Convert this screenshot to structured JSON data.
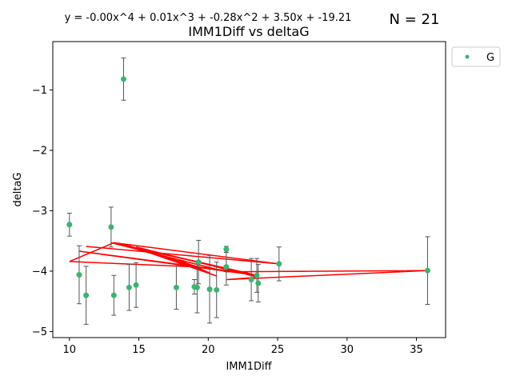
{
  "chart_data": {
    "type": "scatter",
    "title": "IMM1Diff vs deltaG",
    "equation": "y = -0.00x^4 + 0.01x^3 + -0.28x^2 + 3.50x + -19.21",
    "n_label": "N = 21",
    "xlabel": "IMM1Diff",
    "ylabel": "deltaG",
    "xlim": [
      8.8,
      37.1
    ],
    "ylim": [
      -5.1,
      -0.2
    ],
    "xticks": [
      10,
      15,
      20,
      25,
      30,
      35
    ],
    "yticks": [
      -1,
      -2,
      -3,
      -4,
      -5
    ],
    "grid": false,
    "legend_position": "outside-top-right",
    "colors": {
      "points": "#3cb371",
      "fit_line": "#ff0000",
      "errorbars": "#555555"
    },
    "series": [
      {
        "name": "G",
        "points": [
          {
            "x": 10.0,
            "y": -3.23,
            "err": 0.19
          },
          {
            "x": 10.7,
            "y": -4.06,
            "err": 0.48
          },
          {
            "x": 11.2,
            "y": -4.4,
            "err": 0.48
          },
          {
            "x": 13.0,
            "y": -3.27,
            "err": 0.33
          },
          {
            "x": 13.2,
            "y": -4.4,
            "err": 0.33
          },
          {
            "x": 13.9,
            "y": -0.82,
            "err": 0.35
          },
          {
            "x": 14.3,
            "y": -4.27,
            "err": 0.38
          },
          {
            "x": 14.8,
            "y": -4.23,
            "err": 0.37
          },
          {
            "x": 17.7,
            "y": -4.27,
            "err": 0.36
          },
          {
            "x": 19.0,
            "y": -4.26,
            "err": 0.12
          },
          {
            "x": 19.2,
            "y": -4.27,
            "err": 0.42
          },
          {
            "x": 19.3,
            "y": -3.85,
            "err": 0.36
          },
          {
            "x": 20.1,
            "y": -4.3,
            "err": 0.56
          },
          {
            "x": 20.6,
            "y": -4.31,
            "err": 0.46
          },
          {
            "x": 21.3,
            "y": -3.64,
            "err": 0.05
          },
          {
            "x": 21.3,
            "y": -3.93,
            "err": 0.3
          },
          {
            "x": 23.1,
            "y": -4.14,
            "err": 0.35
          },
          {
            "x": 23.5,
            "y": -4.07,
            "err": 0.28
          },
          {
            "x": 23.6,
            "y": -4.2,
            "err": 0.31
          },
          {
            "x": 25.1,
            "y": -3.88,
            "err": 0.28
          },
          {
            "x": 35.8,
            "y": -3.99,
            "err": 0.56
          }
        ]
      }
    ],
    "fit_line_points": [
      {
        "x": 11.2,
        "y": -3.59
      },
      {
        "x": 25.1,
        "y": -3.88
      },
      {
        "x": 13.2,
        "y": -3.53
      },
      {
        "x": 19.3,
        "y": -3.93
      },
      {
        "x": 10.0,
        "y": -3.84
      },
      {
        "x": 13.2,
        "y": -3.53
      },
      {
        "x": 23.0,
        "y": -4.04
      },
      {
        "x": 10.7,
        "y": -3.67
      },
      {
        "x": 23.5,
        "y": -4.07
      },
      {
        "x": 13.0,
        "y": -3.53
      },
      {
        "x": 21.3,
        "y": -4.01
      },
      {
        "x": 35.8,
        "y": -3.99
      },
      {
        "x": 21.3,
        "y": -4.14
      },
      {
        "x": 23.6,
        "y": -4.1
      },
      {
        "x": 14.8,
        "y": -3.6
      },
      {
        "x": 20.6,
        "y": -4.08
      },
      {
        "x": 14.3,
        "y": -3.58
      },
      {
        "x": 19.2,
        "y": -3.94
      },
      {
        "x": 20.1,
        "y": -4.03
      },
      {
        "x": 17.7,
        "y": -3.8
      },
      {
        "x": 19.0,
        "y": -3.92
      }
    ]
  }
}
